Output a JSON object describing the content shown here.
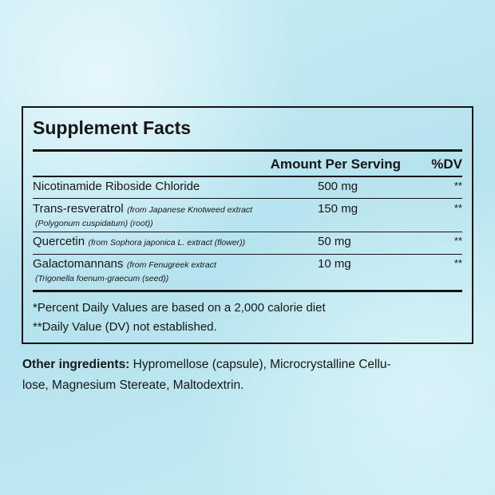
{
  "header": {
    "title": "Supplement Facts"
  },
  "table": {
    "columns": [
      "Amount Per Serving",
      "%DV"
    ],
    "rows": [
      {
        "name": "Nicotinamide Riboside Chloride",
        "note": [],
        "amount": "500 mg",
        "dv": "**"
      },
      {
        "name": "Trans-resveratrol",
        "note": [
          "(from Japanese Knotweed extract",
          "(Polygonum cuspidatum) (root))"
        ],
        "amount": "150 mg",
        "dv": "**"
      },
      {
        "name": "Quercetin",
        "note": [
          "(from Sophora japonica L. extract (flower))"
        ],
        "amount": "50 mg",
        "dv": "**"
      },
      {
        "name": "Galactomannans",
        "note": [
          "(from Fenugreek extract",
          "(Trigonella foenum-graecum (seed))"
        ],
        "amount": "10 mg",
        "dv": "**"
      }
    ],
    "footnotes": [
      "*Percent Daily Values are based on a 2,000 calorie diet",
      "**Daily Value (DV) not established."
    ]
  },
  "other_ingredients": {
    "label": "Other ingredients:",
    "text_lines": [
      "Hypromellose (capsule), Microcrystalline Cellu-",
      "lose, Magnesium Stereate, Maltodextrin."
    ]
  }
}
